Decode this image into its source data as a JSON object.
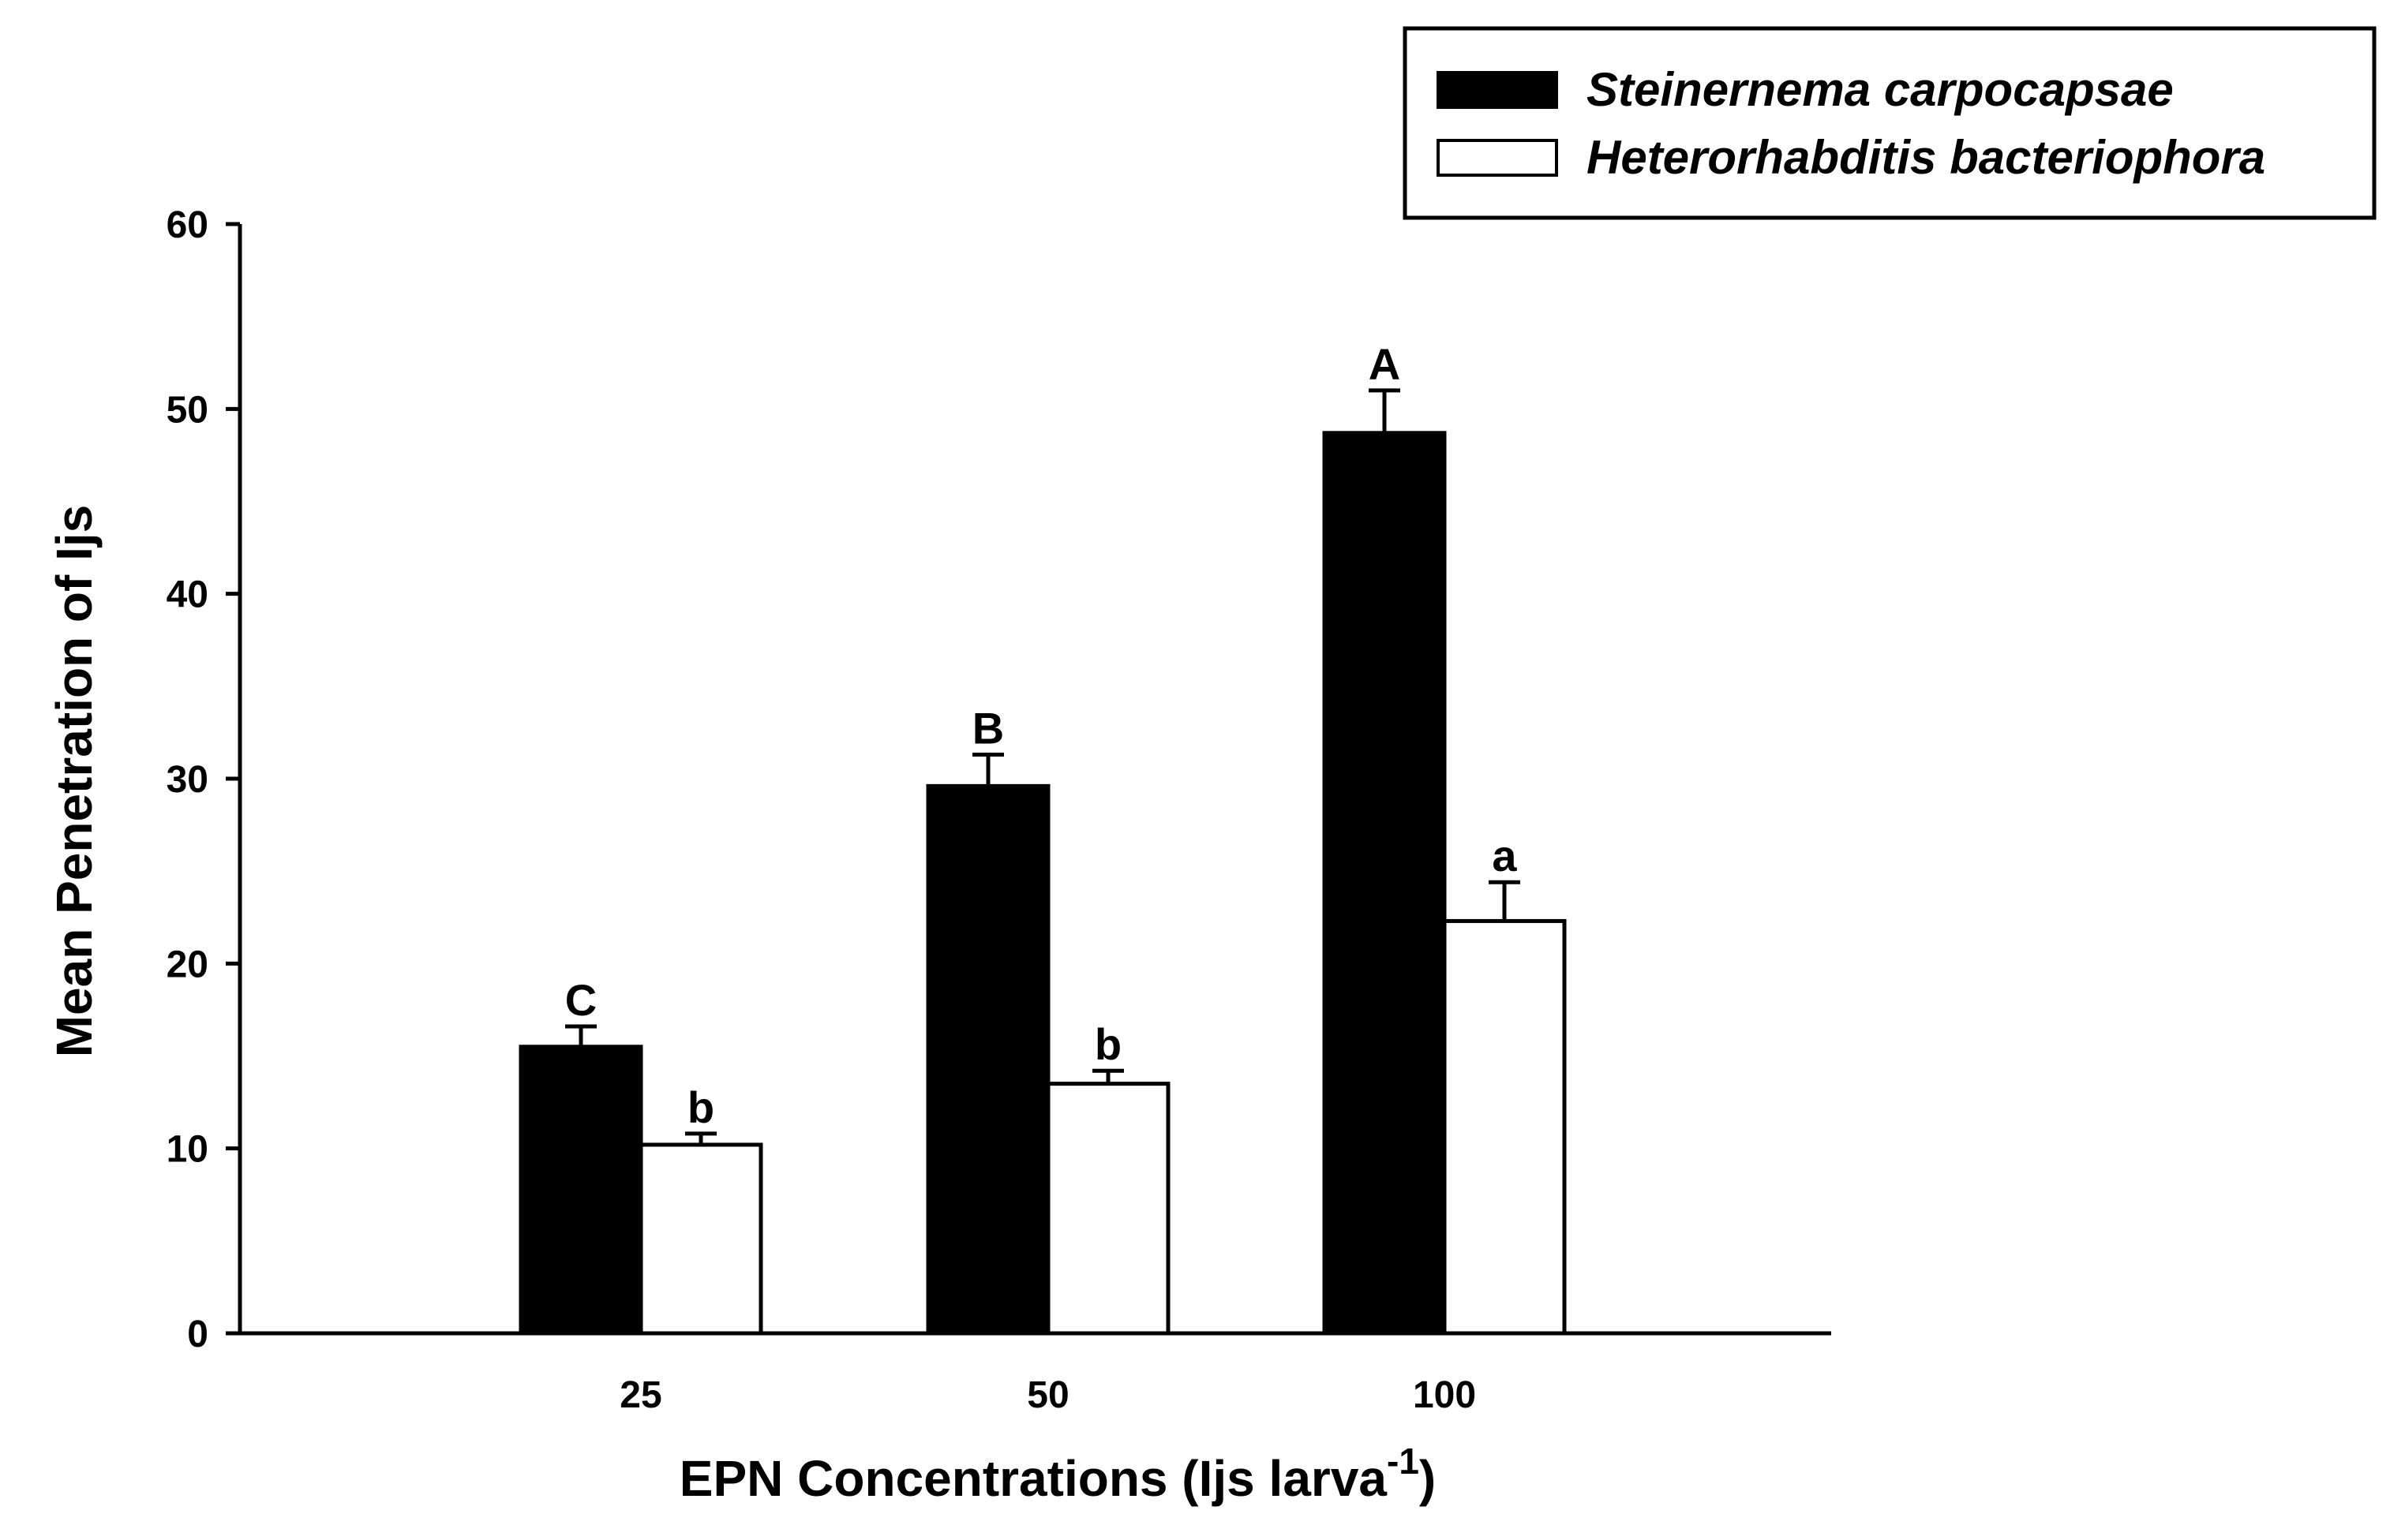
{
  "chart_data": {
    "type": "bar",
    "title": "",
    "xlabel": "EPN Concentrations (Ijs larva",
    "xlabel_superscript": "-1",
    "xlabel_suffix": ")",
    "ylabel": "Mean Penetration of Ijs",
    "ylim": [
      0,
      60
    ],
    "yticks": [
      0,
      10,
      20,
      30,
      40,
      50,
      60
    ],
    "ytick_labels": [
      "0",
      "10",
      "20",
      "30",
      "40",
      "50",
      "60"
    ],
    "categories": [
      "25",
      "50",
      "100"
    ],
    "series": [
      {
        "name": "Steinernema carpocapsae",
        "color": "#000000",
        "values": [
          15.5,
          29.6,
          48.7
        ],
        "errors": [
          1.1,
          1.7,
          2.3
        ],
        "significance": [
          "C",
          "B",
          "A"
        ]
      },
      {
        "name": "Heterorhabditis bacteriophora",
        "color": "#ffffff",
        "values": [
          10.2,
          13.5,
          22.3
        ],
        "errors": [
          0.6,
          0.7,
          2.1
        ],
        "significance": [
          "b",
          "b",
          "a"
        ]
      }
    ],
    "legend_position": "top-right",
    "grid": false
  }
}
